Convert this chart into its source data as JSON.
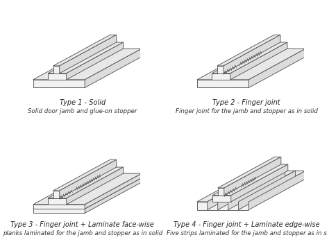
{
  "bg_color": "#ffffff",
  "line_color": "#555555",
  "labels": [
    [
      "Type 1 - Solid",
      "Solid door jamb and glue-on stopper"
    ],
    [
      "Type 2 - Finger joint",
      "Finger joint for the jamb and stopper as in solid"
    ],
    [
      "Type 3 - Finger joint + Laminate face-wise",
      "planks laminated for the jamb and stopper as in solid"
    ],
    [
      "Type 4 - Finger joint + Laminate edge-wise",
      "Five strips laminated for the jamb and stopper as in s"
    ]
  ],
  "label_fontsize": 7.0,
  "sublabel_fontsize": 6.2
}
